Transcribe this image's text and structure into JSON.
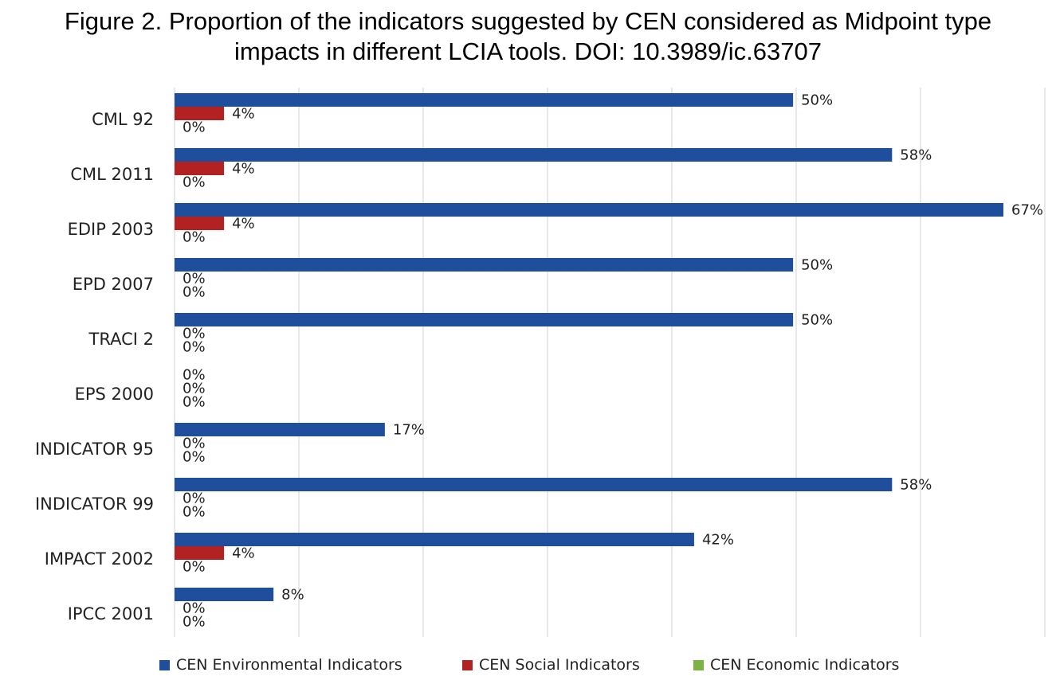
{
  "chart_data": {
    "type": "bar",
    "orientation": "horizontal",
    "title_lines": [
      "Figure 2. Proportion of the indicators suggested by CEN considered as Midpoint type",
      "impacts in different LCIA tools. DOI: 10.3989/ic.63707"
    ],
    "categories": [
      "CML 92",
      "CML 2011",
      "EDIP 2003",
      "EPD 2007",
      "TRACI 2",
      "EPS 2000",
      "INDICATOR 95",
      "INDICATOR 99",
      "IMPACT 2002",
      "IPCC 2001"
    ],
    "series": [
      {
        "name": "CEN Environmental Indicators",
        "color": "#1f4e9c",
        "values": [
          50,
          58,
          67,
          50,
          50,
          0,
          17,
          58,
          42,
          8
        ]
      },
      {
        "name": "CEN Social Indicators",
        "color": "#b22222",
        "values": [
          4,
          4,
          4,
          0,
          0,
          0,
          0,
          0,
          4,
          0
        ]
      },
      {
        "name": "CEN Economic Indicators",
        "color": "#7cb342",
        "values": [
          0,
          0,
          0,
          0,
          0,
          0,
          0,
          0,
          0,
          0
        ]
      }
    ],
    "value_suffix": "%",
    "xlim": [
      0,
      70
    ],
    "grid": true,
    "legend_position": "bottom"
  }
}
